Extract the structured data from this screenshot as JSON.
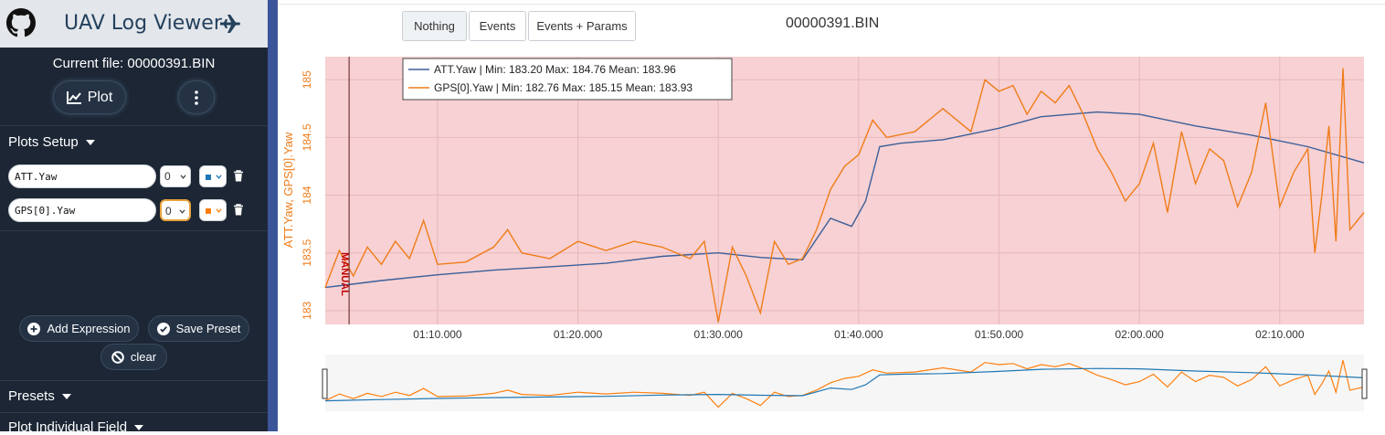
{
  "brand": {
    "title": "UAV Log Viewer"
  },
  "sidebar": {
    "current_file": "Current file: 00000391.BIN",
    "plot_label": "Plot",
    "plots_setup_label": "Plots Setup",
    "fields": [
      {
        "name": "ATT.Yaw",
        "axis": "0",
        "color": "#1f77b4"
      },
      {
        "name": "GPS[0].Yaw",
        "axis": "0",
        "color": "#ff7f0e"
      }
    ],
    "add_expression": "Add Expression",
    "save_preset": "Save Preset",
    "clear": "clear",
    "presets_label": "Presets",
    "plot_individual_label": "Plot Individual Field"
  },
  "tabs": [
    "Nothing",
    "Events",
    "Events + Params"
  ],
  "active_tab": "Nothing",
  "file_title": "00000391.BIN",
  "chart_data": {
    "type": "line",
    "ylabel": "ATT.Yaw, GPS[0].Yaw",
    "ylim": [
      182.88,
      185.2
    ],
    "xlim_seconds": [
      62,
      136
    ],
    "x_ticks": [
      "01:10.000",
      "01:20.000",
      "01:30.000",
      "01:40.000",
      "01:50.000",
      "02:00.000",
      "02:10.000"
    ],
    "y_ticks": [
      "183",
      "183.5",
      "184",
      "184.5",
      "185"
    ],
    "mode_marker": {
      "label": "MANUAL",
      "x_seconds": 63.7
    },
    "background": "#f7d1d3",
    "legend": [
      {
        "name": "ATT.Yaw",
        "stats": "| Min: 183.20      Max: 184.76      Mean: 183.96",
        "color": "#3b5f9a"
      },
      {
        "name": "GPS[0].Yaw",
        "stats": "| Min: 182.76      Max: 185.15      Mean: 183.93",
        "color": "#f07c19"
      }
    ],
    "series": [
      {
        "name": "ATT.Yaw",
        "color": "#3b5f9a",
        "x": [
          62,
          66,
          70,
          74,
          78,
          82,
          86,
          90,
          93,
          96,
          98,
          99.5,
          100.5,
          101.5,
          103,
          106,
          110,
          113,
          117,
          120,
          124,
          128,
          132,
          136
        ],
        "y": [
          183.2,
          183.26,
          183.31,
          183.35,
          183.38,
          183.41,
          183.47,
          183.5,
          183.46,
          183.44,
          183.8,
          183.73,
          183.95,
          184.42,
          184.45,
          184.48,
          184.58,
          184.68,
          184.72,
          184.7,
          184.6,
          184.52,
          184.42,
          184.28
        ]
      },
      {
        "name": "GPS[0].Yaw",
        "color": "#f07c19",
        "x": [
          62,
          63,
          64,
          65,
          66,
          67,
          68,
          69,
          70,
          72,
          74,
          75,
          76,
          78,
          80,
          82,
          84,
          86,
          88,
          89,
          90,
          91,
          92,
          93,
          94,
          95,
          96,
          97,
          98,
          99,
          100,
          101,
          102,
          104,
          106,
          108,
          109,
          110,
          111,
          112,
          113,
          114,
          115,
          116,
          117,
          118,
          119,
          120,
          121,
          122,
          123,
          124,
          125,
          126,
          127,
          128,
          129,
          130,
          131,
          132,
          132.5,
          133,
          133.5,
          134,
          134.5,
          135,
          136
        ],
        "y": [
          183.2,
          183.52,
          183.3,
          183.55,
          183.4,
          183.6,
          183.45,
          183.78,
          183.4,
          183.42,
          183.55,
          183.7,
          183.5,
          183.45,
          183.6,
          183.52,
          183.6,
          183.55,
          183.45,
          183.6,
          182.9,
          183.55,
          183.3,
          182.98,
          183.6,
          183.4,
          183.45,
          183.7,
          184.05,
          184.25,
          184.35,
          184.65,
          184.5,
          184.55,
          184.75,
          184.55,
          185.0,
          184.9,
          184.95,
          184.7,
          184.9,
          184.8,
          184.95,
          184.7,
          184.4,
          184.2,
          183.95,
          184.1,
          184.45,
          183.85,
          184.55,
          184.1,
          184.4,
          184.3,
          183.9,
          184.2,
          184.8,
          183.9,
          184.2,
          184.4,
          183.5,
          184.0,
          184.6,
          183.6,
          185.1,
          183.7,
          183.85
        ]
      }
    ]
  }
}
